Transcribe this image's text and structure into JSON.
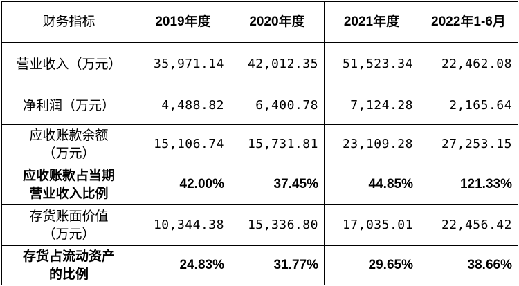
{
  "table": {
    "headers": [
      "财务指标",
      "2019年度",
      "2020年度",
      "2021年度",
      "2022年1-6月"
    ],
    "rows": [
      {
        "label": "营业收入（万元）",
        "values": [
          "35,971.14",
          "42,012.35",
          "51,523.34",
          "22,462.08"
        ]
      },
      {
        "label": "净利润（万元）",
        "values": [
          "4,488.82",
          "6,400.78",
          "7,124.28",
          "2,165.64"
        ]
      },
      {
        "label": "应收账款余额\n（万元）",
        "values": [
          "15,106.74",
          "15,731.81",
          "23,109.28",
          "27,253.15"
        ]
      },
      {
        "label": "应收账款占当期\n营业收入比例",
        "values": [
          "42.00%",
          "37.45%",
          "44.85%",
          "121.33%"
        ]
      },
      {
        "label": "存货账面价值\n（万元）",
        "values": [
          "10,344.38",
          "15,336.80",
          "17,035.01",
          "22,456.42"
        ]
      },
      {
        "label": "存货占流动资产\n的比例",
        "values": [
          "24.83%",
          "31.77%",
          "29.65%",
          "38.66%"
        ]
      }
    ]
  }
}
